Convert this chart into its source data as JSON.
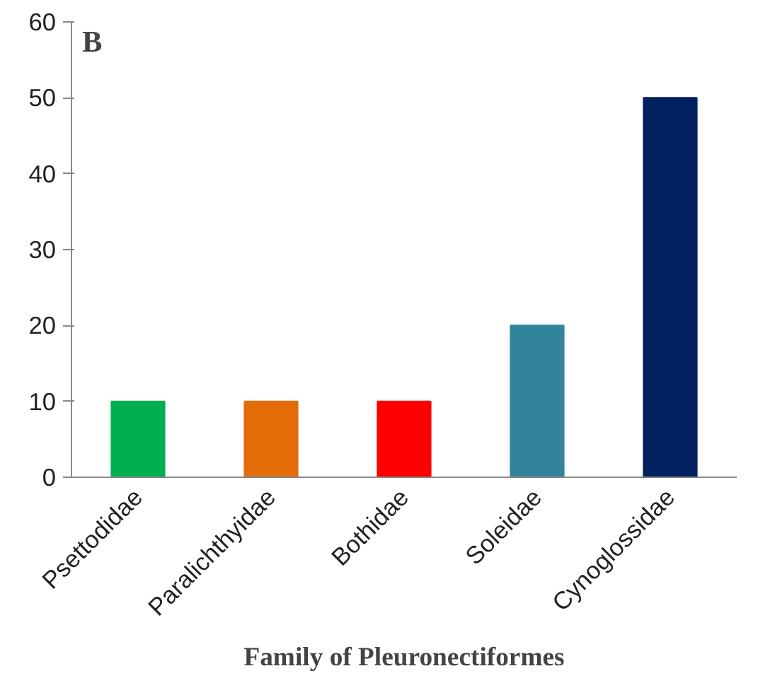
{
  "chart_data": {
    "type": "bar",
    "xlabel": "Family of Pleuronectiformes",
    "annotations": [
      "B"
    ],
    "categories": [
      "Psettodidae",
      "Paralichthyidae",
      "Bothidae",
      "Soleidae",
      "Cynoglossidae"
    ],
    "values": [
      10,
      10,
      10,
      20,
      50
    ],
    "colors": [
      "#00b050",
      "#e36c09",
      "#ff0000",
      "#31849b",
      "#002060"
    ],
    "ylim": [
      0,
      60
    ],
    "yticks": [
      0,
      10,
      20,
      30,
      40,
      50,
      60
    ],
    "grid": false
  }
}
